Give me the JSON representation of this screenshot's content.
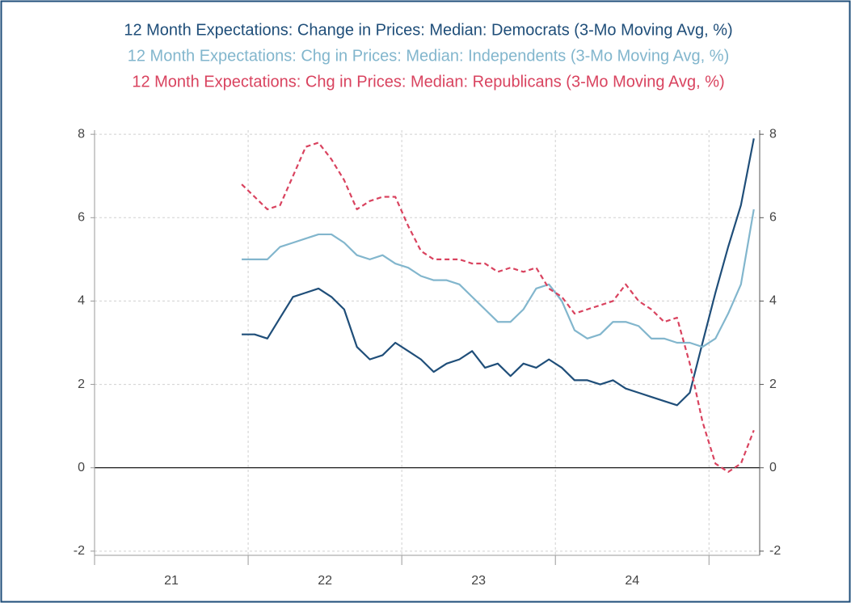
{
  "chart_data": {
    "type": "line",
    "x": [
      2021.958,
      2022.042,
      2022.125,
      2022.208,
      2022.292,
      2022.375,
      2022.458,
      2022.542,
      2022.625,
      2022.708,
      2022.792,
      2022.875,
      2022.958,
      2023.042,
      2023.125,
      2023.208,
      2023.292,
      2023.375,
      2023.458,
      2023.542,
      2023.625,
      2023.708,
      2023.792,
      2023.875,
      2023.958,
      2024.042,
      2024.125,
      2024.208,
      2024.292,
      2024.375,
      2024.458,
      2024.542,
      2024.625,
      2024.708,
      2024.792,
      2024.875,
      2024.958,
      2025.042,
      2025.125,
      2025.208,
      2025.292
    ],
    "series": [
      {
        "name": "12 Month Expectations: Change in Prices: Median: Democrats (3-Mo Moving Avg, %)",
        "color": "#1f4e79",
        "dashed": false,
        "values": [
          3.2,
          3.2,
          3.1,
          3.6,
          4.1,
          4.2,
          4.3,
          4.1,
          3.8,
          2.9,
          2.6,
          2.7,
          3.0,
          2.8,
          2.6,
          2.3,
          2.5,
          2.6,
          2.8,
          2.4,
          2.5,
          2.2,
          2.5,
          2.4,
          2.6,
          2.4,
          2.1,
          2.1,
          2.0,
          2.1,
          1.9,
          1.8,
          1.7,
          1.6,
          1.5,
          1.8,
          3.0,
          4.2,
          5.3,
          6.3,
          7.9
        ]
      },
      {
        "name": "12 Month Expectations: Chg in Prices: Median: Independents (3-Mo Moving Avg, %)",
        "color": "#82b6cd",
        "dashed": false,
        "values": [
          5.0,
          5.0,
          5.0,
          5.3,
          5.4,
          5.5,
          5.6,
          5.6,
          5.4,
          5.1,
          5.0,
          5.1,
          4.9,
          4.8,
          4.6,
          4.5,
          4.5,
          4.4,
          4.1,
          3.8,
          3.5,
          3.5,
          3.8,
          4.3,
          4.4,
          4.0,
          3.3,
          3.1,
          3.2,
          3.5,
          3.5,
          3.4,
          3.1,
          3.1,
          3.0,
          3.0,
          2.9,
          3.1,
          3.7,
          4.4,
          6.2
        ]
      },
      {
        "name": "12 Month Expectations: Chg in Prices: Median: Republicans (3-Mo Moving Avg, %)",
        "color": "#d9435f",
        "dashed": true,
        "values": [
          6.8,
          6.5,
          6.2,
          6.3,
          7.0,
          7.7,
          7.8,
          7.4,
          6.9,
          6.2,
          6.4,
          6.5,
          6.5,
          5.8,
          5.2,
          5.0,
          5.0,
          5.0,
          4.9,
          4.9,
          4.7,
          4.8,
          4.7,
          4.8,
          4.3,
          4.1,
          3.7,
          3.8,
          3.9,
          4.0,
          4.4,
          4.0,
          3.8,
          3.5,
          3.6,
          2.5,
          1.1,
          0.1,
          -0.1,
          0.1,
          0.9
        ]
      }
    ],
    "xlim": [
      2021,
      2025.33
    ],
    "xticks": [
      {
        "value": 2021.5,
        "label": "21"
      },
      {
        "value": 2022.5,
        "label": "22"
      },
      {
        "value": 2023.5,
        "label": "23"
      },
      {
        "value": 2024.5,
        "label": "24"
      }
    ],
    "xgrid": [
      2021,
      2022,
      2023,
      2024,
      2025
    ],
    "ylim": [
      -2.1,
      8.1
    ],
    "yticks": [
      -2,
      0,
      2,
      4,
      6,
      8
    ],
    "grid": true,
    "right_axis_labels": true
  }
}
